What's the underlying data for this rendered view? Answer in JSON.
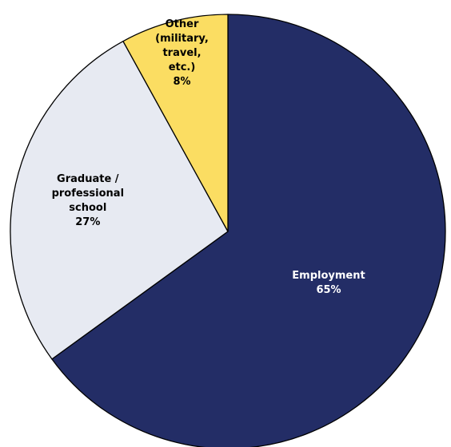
{
  "chart_data": {
    "type": "pie",
    "title": "",
    "start": "12 o'clock",
    "direction": "clockwise",
    "slices": [
      {
        "name": "Employment",
        "value": 65,
        "color": "#232D66",
        "text_color": "#FFFFFF",
        "label_lines": [
          "Employment",
          "65%"
        ]
      },
      {
        "name": "Graduate / professional school",
        "value": 27,
        "color": "#E7EAF2",
        "text_color": "#000000",
        "label_lines": [
          "Graduate /",
          "professional",
          "school",
          "27%"
        ]
      },
      {
        "name": "Other (military, travel, etc.)",
        "value": 8,
        "color": "#FBDD62",
        "text_color": "#000000",
        "label_lines": [
          "Other",
          "(military,",
          "travel,",
          "etc.)",
          "8%"
        ]
      }
    ]
  }
}
